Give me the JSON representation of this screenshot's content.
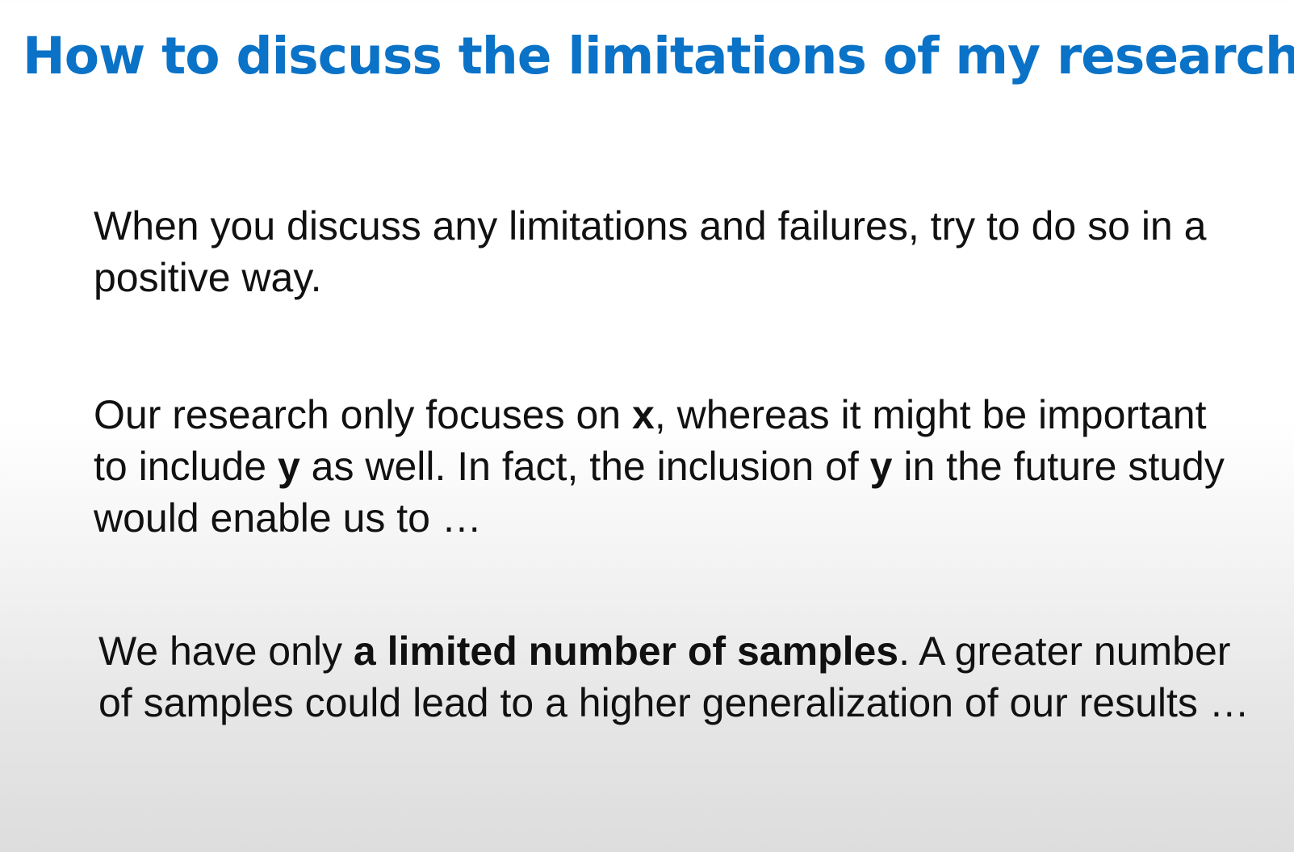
{
  "slide": {
    "title": "How to discuss the limitations of my research?",
    "colors": {
      "title": "#0a72c7",
      "text": "#111111",
      "background_top": "#ffffff",
      "background_bottom": "#dddddd"
    },
    "paragraph1": {
      "text": "When you discuss any limitations and failures, try to do so in a positive way."
    },
    "paragraph2": {
      "t1": "Our research only focuses on ",
      "b1": "x",
      "t2": ", whereas it might be important to include ",
      "b2": "y",
      "t3": " as well. In fact, the inclusion of ",
      "b3": "y",
      "t4": " in the future study would enable us to …"
    },
    "paragraph3": {
      "t1": "We have only ",
      "b1": "a limited number of samples",
      "t2": ". A greater number of samples could lead to a higher generalization of our results …"
    }
  }
}
